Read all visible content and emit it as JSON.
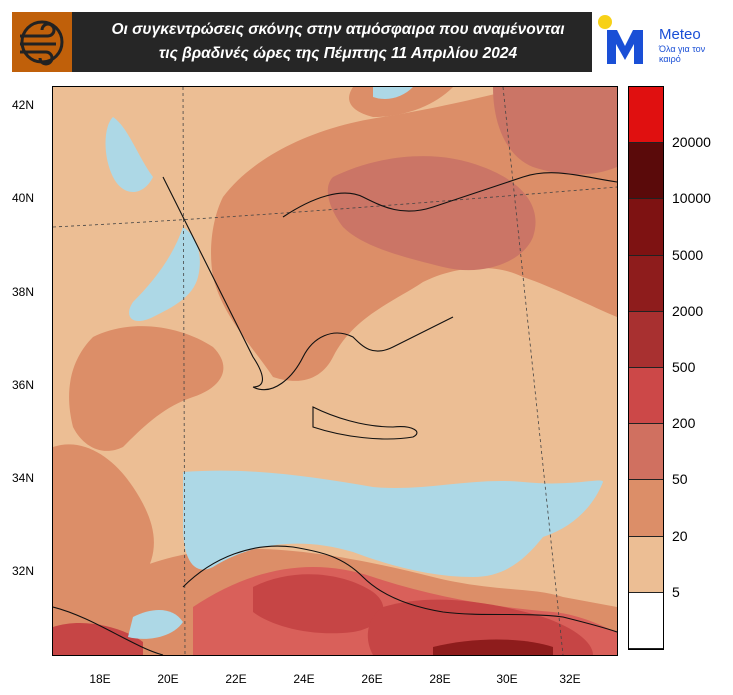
{
  "header": {
    "title_line1": "Οι συγκεντρώσεις σκόνης στην ατμόσφαιρα που αναμένονται",
    "title_line2": "τις βραδινές ώρες της Πέμπτης 11 Απριλίου 2024"
  },
  "brand": {
    "name": "Meteo",
    "tagline": "Όλα για τον καιρό"
  },
  "map": {
    "lat_labels": [
      "42N",
      "40N",
      "38N",
      "36N",
      "34N",
      "32N"
    ],
    "lon_labels": [
      "18E",
      "20E",
      "22E",
      "24E",
      "26E",
      "28E",
      "30E",
      "32E"
    ]
  },
  "legend": {
    "labels": [
      "20000",
      "10000",
      "5000",
      "2000",
      "500",
      "200",
      "50",
      "20",
      "5"
    ],
    "colors": [
      "#e01010",
      "#5a0a0a",
      "#7e1212",
      "#8e1c1c",
      "#a83030",
      "#cc4848",
      "#d07060",
      "#dc8e68",
      "#ecbe94",
      "#ffffff"
    ]
  }
}
